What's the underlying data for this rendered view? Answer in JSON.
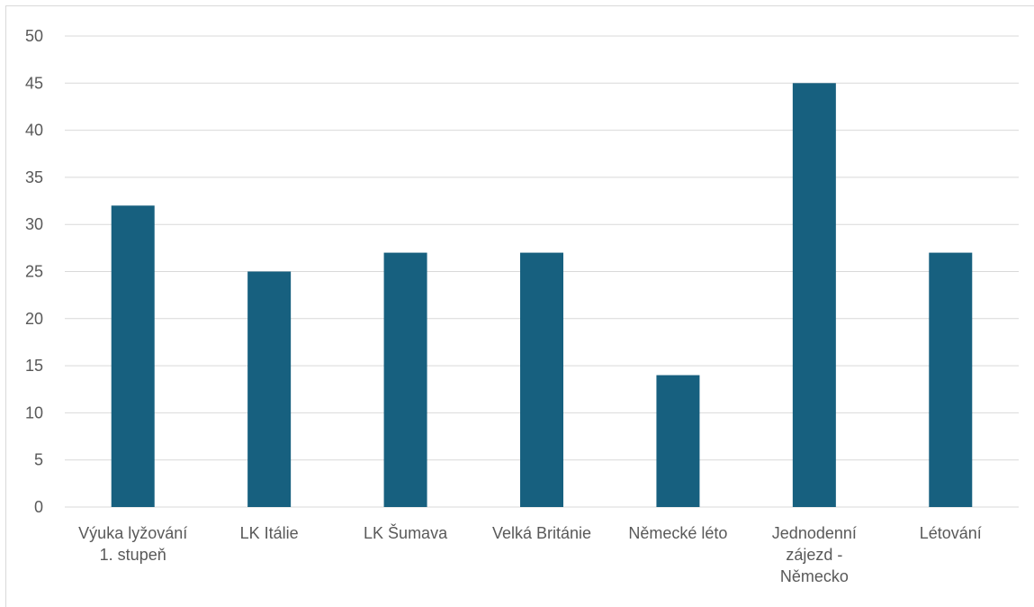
{
  "chart_data": {
    "type": "bar",
    "title": "",
    "xlabel": "",
    "ylabel": "",
    "categories": [
      "Výuka lyžování 1. stupeň",
      "LK Itálie",
      "LK Šumava",
      "Velká Británie",
      "Německé léto",
      "Jednodenní zájezd - Německo",
      "Létování"
    ],
    "category_lines": [
      [
        "Výuka lyžování",
        "1. stupeň"
      ],
      [
        "LK Itálie"
      ],
      [
        "LK Šumava"
      ],
      [
        "Velká Británie"
      ],
      [
        "Německé léto"
      ],
      [
        "Jednodenní",
        "zájezd -",
        "Německo"
      ],
      [
        "Létování"
      ]
    ],
    "values": [
      32,
      25,
      27,
      27,
      14,
      45,
      27
    ],
    "ylim": [
      0,
      50
    ],
    "yticks": [
      0,
      5,
      10,
      15,
      20,
      25,
      30,
      35,
      40,
      45,
      50
    ],
    "grid": true,
    "legend": "none",
    "colors": {
      "bar": "#17607f",
      "grid": "#d9d9d9",
      "text": "#595959"
    }
  }
}
